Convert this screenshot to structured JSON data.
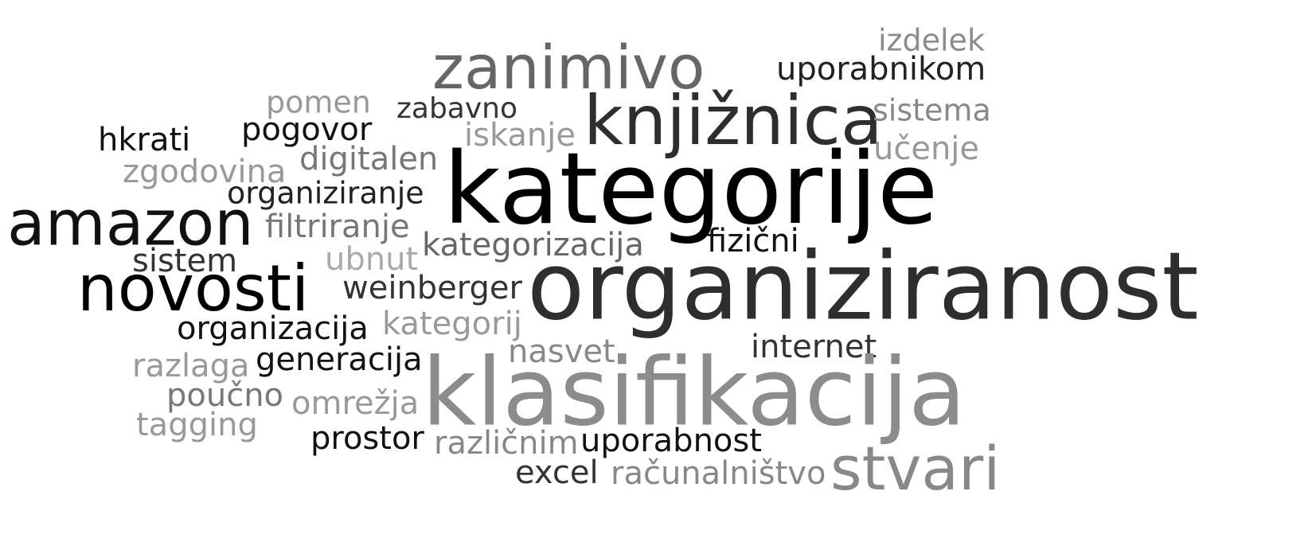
{
  "words": [
    {
      "text": "zanimivo",
      "color": "#666666"
    },
    {
      "text": "izdelek",
      "color": "#8c8c8c"
    },
    {
      "text": "uporabnikom",
      "color": "#222222"
    },
    {
      "text": "pomen",
      "color": "#999999"
    },
    {
      "text": "zabavno",
      "color": "#333333"
    },
    {
      "text": "knjižnica",
      "color": "#2e2e2e"
    },
    {
      "text": "sistema",
      "color": "#888888"
    },
    {
      "text": "hkrati",
      "color": "#111111"
    },
    {
      "text": "pogovor",
      "color": "#111111"
    },
    {
      "text": "iskanje",
      "color": "#999999"
    },
    {
      "text": "učenje",
      "color": "#999999"
    },
    {
      "text": "digitalen",
      "color": "#777777"
    },
    {
      "text": "zgodovina",
      "color": "#999999"
    },
    {
      "text": "kategorije",
      "color": "#000000"
    },
    {
      "text": "organiziranje",
      "color": "#222222"
    },
    {
      "text": "amazon",
      "color": "#111111"
    },
    {
      "text": "filtriranje",
      "color": "#777777"
    },
    {
      "text": "fizični",
      "color": "#111111"
    },
    {
      "text": "kategorizacija",
      "color": "#666666"
    },
    {
      "text": "sistem",
      "color": "#333333"
    },
    {
      "text": "ubnut",
      "color": "#aaaaaa"
    },
    {
      "text": "novosti",
      "color": "#000000"
    },
    {
      "text": "organiziranost",
      "color": "#2e2e2e"
    },
    {
      "text": "weinberger",
      "color": "#333333"
    },
    {
      "text": "organizacija",
      "color": "#111111"
    },
    {
      "text": "kategorij",
      "color": "#999999"
    },
    {
      "text": "internet",
      "color": "#333333"
    },
    {
      "text": "nasvet",
      "color": "#888888"
    },
    {
      "text": "razlaga",
      "color": "#999999"
    },
    {
      "text": "generacija",
      "color": "#111111"
    },
    {
      "text": "klasifikacija",
      "color": "#8c8c8c"
    },
    {
      "text": "poučno",
      "color": "#777777"
    },
    {
      "text": "omrežja",
      "color": "#999999"
    },
    {
      "text": "tagging",
      "color": "#999999"
    },
    {
      "text": "prostor",
      "color": "#111111"
    },
    {
      "text": "različnim",
      "color": "#888888"
    },
    {
      "text": "uporabnost",
      "color": "#111111"
    },
    {
      "text": "stvari",
      "color": "#888888"
    },
    {
      "text": "excel",
      "color": "#333333"
    },
    {
      "text": "računalništvo",
      "color": "#888888"
    }
  ]
}
